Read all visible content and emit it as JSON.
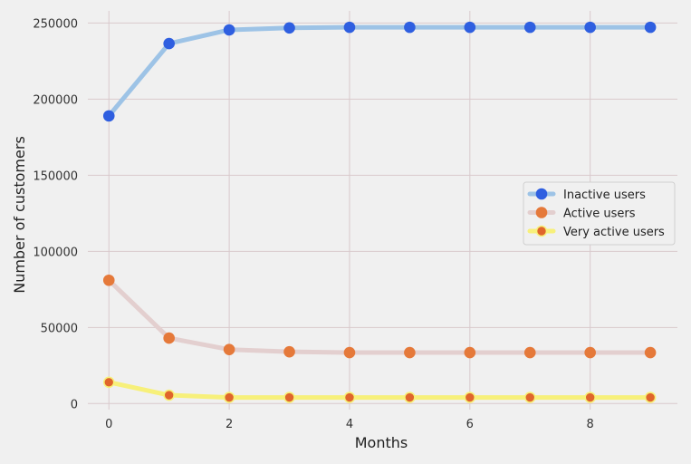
{
  "chart_data": {
    "type": "line",
    "title": "",
    "xlabel": "Months",
    "ylabel": "Number of customers",
    "x": [
      0,
      1,
      2,
      3,
      4,
      5,
      6,
      7,
      8,
      9
    ],
    "xlim": [
      -0.35,
      9.45
    ],
    "ylim": [
      -4000,
      258000
    ],
    "xticks": [
      0,
      2,
      4,
      6,
      8
    ],
    "xtick_labels": [
      "0",
      "2",
      "4",
      "6",
      "8"
    ],
    "yticks": [
      0,
      50000,
      100000,
      150000,
      200000,
      250000
    ],
    "ytick_labels": [
      "0",
      "50000",
      "100000",
      "150000",
      "200000",
      "250000"
    ],
    "grid": true,
    "legend_position": "center-right",
    "series": [
      {
        "name": "Inactive users",
        "values": [
          189000,
          236500,
          245500,
          246800,
          247200,
          247200,
          247200,
          247200,
          247200,
          247200
        ],
        "line_color": "#9dc3e6",
        "marker_color": "#2f5fe0",
        "marker_edge": "#2f5fe0"
      },
      {
        "name": "Active users",
        "values": [
          81000,
          43000,
          35500,
          34000,
          33500,
          33500,
          33500,
          33500,
          33500,
          33500
        ],
        "line_color": "#e3cfcf",
        "marker_color": "#e5793a",
        "marker_edge": "#e5793a"
      },
      {
        "name": "Very active users",
        "values": [
          14000,
          5500,
          4000,
          4000,
          4000,
          4000,
          4000,
          4000,
          4000,
          4000
        ],
        "line_color": "#f7f07a",
        "marker_color": "#e0652b",
        "marker_edge": "#f7f07a"
      }
    ]
  }
}
